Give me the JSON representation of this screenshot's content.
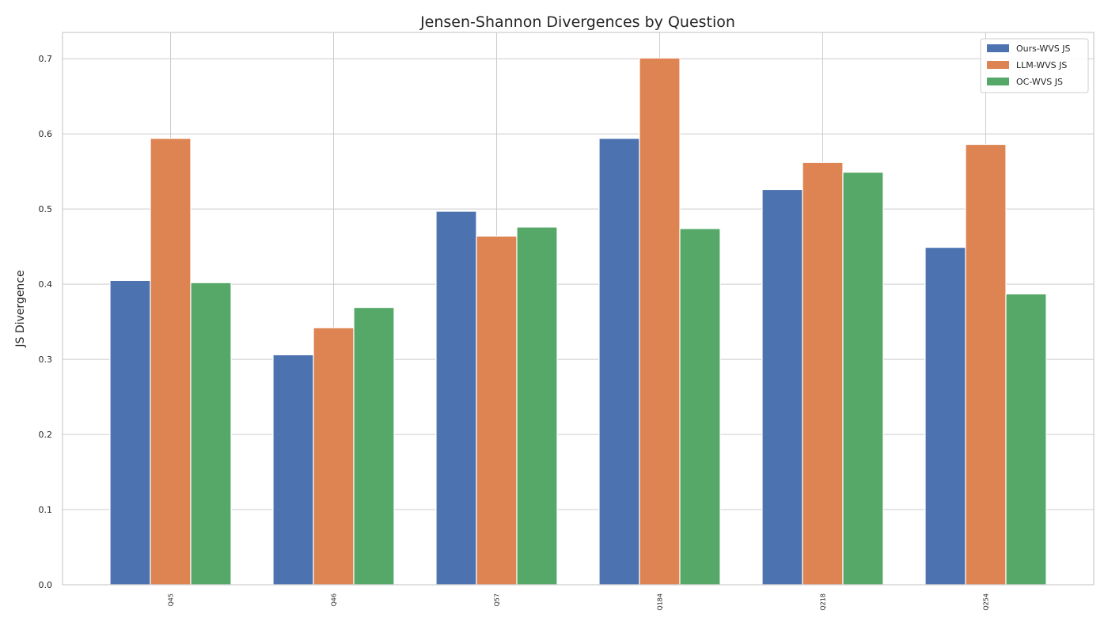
{
  "chart_data": {
    "type": "bar",
    "title": "Jensen-Shannon Divergences by Question",
    "xlabel": "",
    "ylabel": "JS Divergence",
    "categories": [
      "Q45",
      "Q46",
      "Q57",
      "Q184",
      "Q218",
      "Q254"
    ],
    "series": [
      {
        "name": "Ours-WVS JS",
        "color": "#4c72b0",
        "values": [
          0.405,
          0.306,
          0.497,
          0.594,
          0.526,
          0.449
        ]
      },
      {
        "name": "LLM-WVS JS",
        "color": "#dd8452",
        "values": [
          0.594,
          0.342,
          0.464,
          0.701,
          0.562,
          0.586
        ]
      },
      {
        "name": "OC-WVS JS",
        "color": "#55a868",
        "values": [
          0.402,
          0.369,
          0.476,
          0.474,
          0.549,
          0.387
        ]
      }
    ],
    "ylim": [
      0,
      0.735
    ],
    "yticks": [
      "0.0",
      "0.1",
      "0.2",
      "0.3",
      "0.4",
      "0.5",
      "0.6",
      "0.7"
    ],
    "grid": true,
    "legend": "top-right"
  }
}
